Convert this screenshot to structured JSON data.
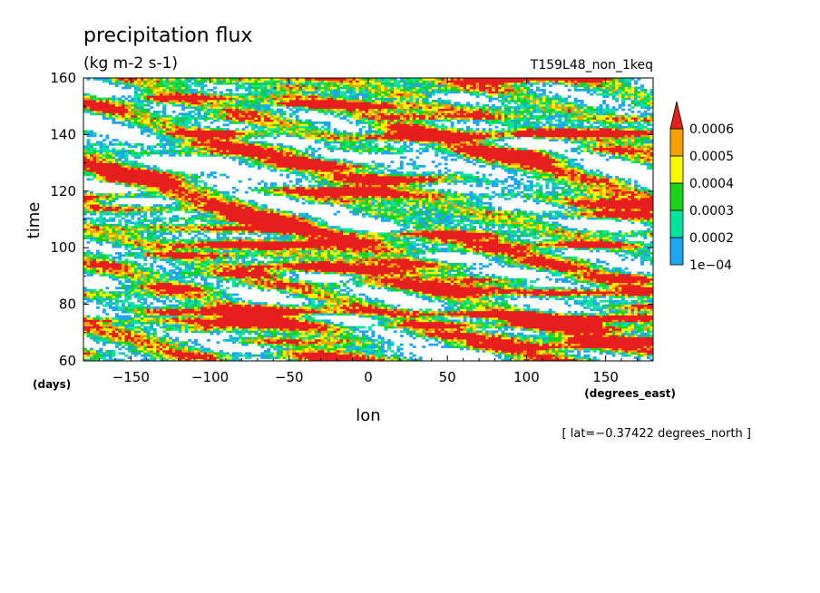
{
  "chart_data": {
    "type": "heatmap",
    "title": "precipitation flux",
    "units": "(kg m-2 s-1)",
    "run_label": "T159L48_non_1keq",
    "xlabel": "lon",
    "x_units": "(degrees_east)",
    "ylabel": "time",
    "y_units": "(days)",
    "xlim": [
      -180,
      180
    ],
    "ylim": [
      60,
      160
    ],
    "x_ticks": [
      -150,
      -100,
      -50,
      0,
      50,
      100,
      150
    ],
    "y_ticks": [
      60,
      80,
      100,
      120,
      140,
      160
    ],
    "x_tick_labels": [
      "−150",
      "−100",
      "−50",
      "0",
      "50",
      "100",
      "150"
    ],
    "y_tick_labels": [
      "60",
      "80",
      "100",
      "120",
      "140",
      "160"
    ],
    "levels": [
      0.0001,
      0.0002,
      0.0003,
      0.0004,
      0.0005,
      0.0006
    ],
    "colorbar_labels": [
      "1e−04",
      "0.0002",
      "0.0003",
      "0.0004",
      "0.0005",
      "0.0006"
    ],
    "colors": {
      "below": "#ffffff",
      "bands": [
        "#1ea5f0",
        "#00e49e",
        "#18d418",
        "#f8f800",
        "#f6a000",
        "#e61e1e"
      ]
    },
    "annotation": "[ lat=−0.37422 degrees_north ]"
  }
}
